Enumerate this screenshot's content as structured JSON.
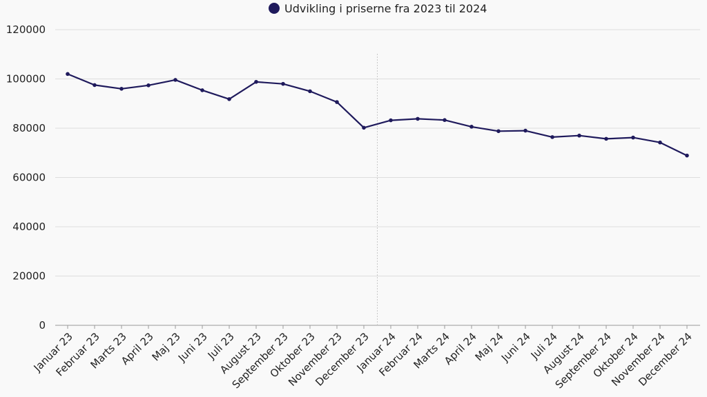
{
  "chart_data": {
    "type": "line",
    "title": "",
    "legend": {
      "position": "top-center"
    },
    "categories": [
      "Januar 23",
      "Februar 23",
      "Marts 23",
      "April 23",
      "Maj 23",
      "Juni 23",
      "Juli 23",
      "August 23",
      "September 23",
      "Oktober 23",
      "November 23",
      "December 23",
      "Januar 24",
      "Februar 24",
      "Marts 24",
      "April 24",
      "Maj 24",
      "Juni 24",
      "Juli 24",
      "August 24",
      "September 24",
      "Oktober 24",
      "November 24",
      "December 24"
    ],
    "series": [
      {
        "name": "Udvikling i priserne fra 2023 til 2024",
        "color": "#1f1a5c",
        "values": [
          102000,
          97500,
          96000,
          97400,
          99600,
          95400,
          91800,
          98800,
          98000,
          95000,
          90600,
          80200,
          83200,
          83800,
          83300,
          80600,
          78800,
          79000,
          76400,
          77000,
          75700,
          76200,
          74200,
          68900
        ]
      }
    ],
    "yticks": [
      "0",
      "20000",
      "40000",
      "60000",
      "80000",
      "100000",
      "120000"
    ],
    "ylim": [
      0,
      120000
    ],
    "grid": true,
    "divider_after_category": "December 23",
    "xlabel": "",
    "ylabel": ""
  }
}
